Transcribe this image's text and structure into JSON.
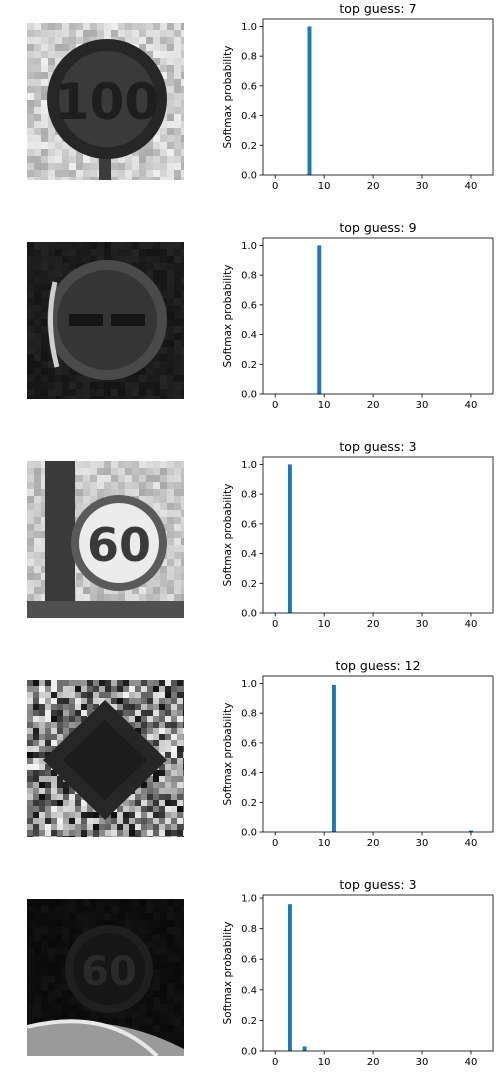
{
  "chart_data": [
    {
      "type": "bar",
      "title": "top guess: 7",
      "ylabel": "Softmax probability",
      "xlabel": "",
      "xlim": [
        -2.5,
        44.5
      ],
      "ylim": [
        0,
        1.05
      ],
      "xticks": [
        0,
        10,
        20,
        30,
        40
      ],
      "yticks": [
        0.0,
        0.2,
        0.4,
        0.6,
        0.8,
        1.0
      ],
      "ytick_labels": [
        "0.0",
        "0.2",
        "0.4",
        "0.6",
        "0.8",
        "1.0"
      ],
      "bar_color": "#1f77b4",
      "x": [
        7
      ],
      "values": [
        1.0
      ],
      "image": {
        "sign": "100",
        "style": "gray-light"
      }
    },
    {
      "type": "bar",
      "title": "top guess: 9",
      "ylabel": "Softmax probability",
      "xlabel": "",
      "xlim": [
        -2.5,
        44.5
      ],
      "ylim": [
        0,
        1.05
      ],
      "xticks": [
        0,
        10,
        20,
        30,
        40
      ],
      "yticks": [
        0.0,
        0.2,
        0.4,
        0.6,
        0.8,
        1.0
      ],
      "ytick_labels": [
        "0.0",
        "0.2",
        "0.4",
        "0.6",
        "0.8",
        "1.0"
      ],
      "bar_color": "#1f77b4",
      "x": [
        9
      ],
      "values": [
        1.0
      ],
      "image": {
        "sign": "no-passing",
        "style": "dark"
      }
    },
    {
      "type": "bar",
      "title": "top guess: 3",
      "ylabel": "Softmax probability",
      "xlabel": "",
      "xlim": [
        -2.5,
        44.5
      ],
      "ylim": [
        0,
        1.05
      ],
      "xticks": [
        0,
        10,
        20,
        30,
        40
      ],
      "yticks": [
        0.0,
        0.2,
        0.4,
        0.6,
        0.8,
        1.0
      ],
      "ytick_labels": [
        "0.0",
        "0.2",
        "0.4",
        "0.6",
        "0.8",
        "1.0"
      ],
      "bar_color": "#1f77b4",
      "x": [
        3
      ],
      "values": [
        1.0
      ],
      "image": {
        "sign": "60",
        "style": "bright"
      }
    },
    {
      "type": "bar",
      "title": "top guess: 12",
      "ylabel": "Softmax probability",
      "xlabel": "",
      "xlim": [
        -2.5,
        44.5
      ],
      "ylim": [
        0,
        1.05
      ],
      "xticks": [
        0,
        10,
        20,
        30,
        40
      ],
      "yticks": [
        0.0,
        0.2,
        0.4,
        0.6,
        0.8,
        1.0
      ],
      "ytick_labels": [
        "0.0",
        "0.2",
        "0.4",
        "0.6",
        "0.8",
        "1.0"
      ],
      "bar_color": "#1f77b4",
      "x": [
        12,
        40
      ],
      "values": [
        0.99,
        0.01
      ],
      "image": {
        "sign": "priority-road",
        "style": "noisy"
      }
    },
    {
      "type": "bar",
      "title": "top guess: 3",
      "ylabel": "Softmax probability",
      "xlabel": "",
      "xlim": [
        -2.5,
        44.5
      ],
      "ylim": [
        0,
        1.02
      ],
      "xticks": [
        0,
        10,
        20,
        30,
        40
      ],
      "yticks": [
        0.0,
        0.2,
        0.4,
        0.6,
        0.8,
        1.0
      ],
      "ytick_labels": [
        "0.0",
        "0.2",
        "0.4",
        "0.6",
        "0.8",
        "1.0"
      ],
      "bar_color": "#1f77b4",
      "x": [
        3,
        6
      ],
      "values": [
        0.96,
        0.03
      ],
      "image": {
        "sign": "60",
        "style": "very-dark"
      }
    }
  ]
}
